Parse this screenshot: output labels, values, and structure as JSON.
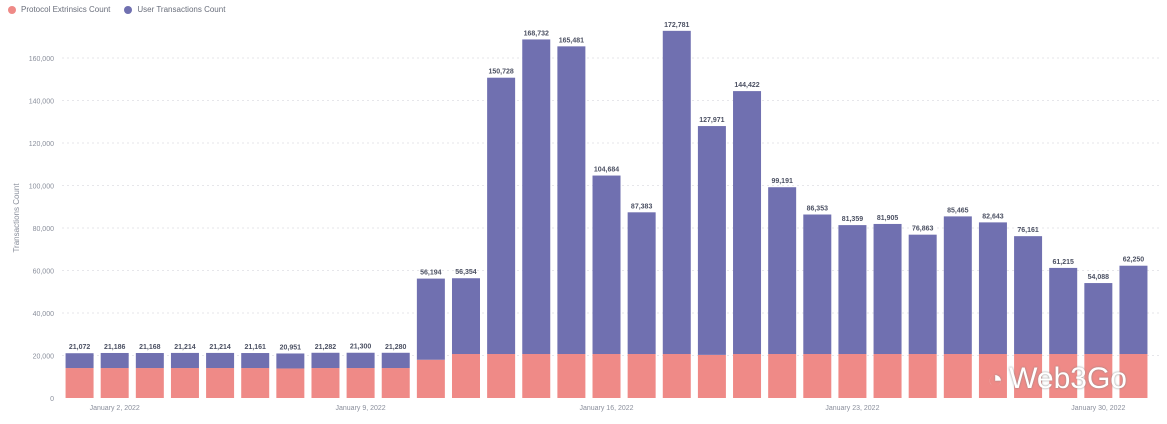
{
  "chart_data": {
    "type": "bar",
    "stacked": true,
    "ylabel": "Transactions Count",
    "ylim": [
      0,
      175000
    ],
    "yticks": [
      0,
      20000,
      40000,
      60000,
      80000,
      100000,
      120000,
      140000,
      160000
    ],
    "ytick_labels": [
      "0",
      "20,000",
      "40,000",
      "60,000",
      "80,000",
      "100,000",
      "120,000",
      "140,000",
      "160,000"
    ],
    "x_tick_labels": [
      {
        "index": 1,
        "label": "January 2, 2022"
      },
      {
        "index": 8,
        "label": "January 9, 2022"
      },
      {
        "index": 15,
        "label": "January 16, 2022"
      },
      {
        "index": 22,
        "label": "January 23, 2022"
      },
      {
        "index": 29,
        "label": "January 30, 2022"
      }
    ],
    "categories": [
      "2022-01-01",
      "2022-01-02",
      "2022-01-03",
      "2022-01-04",
      "2022-01-05",
      "2022-01-06",
      "2022-01-07",
      "2022-01-08",
      "2022-01-09",
      "2022-01-10",
      "2022-01-11",
      "2022-01-12",
      "2022-01-13",
      "2022-01-14",
      "2022-01-15",
      "2022-01-16",
      "2022-01-17",
      "2022-01-18",
      "2022-01-19",
      "2022-01-20",
      "2022-01-21",
      "2022-01-22",
      "2022-01-23",
      "2022-01-24",
      "2022-01-25",
      "2022-01-26",
      "2022-01-27",
      "2022-01-28",
      "2022-01-29",
      "2022-01-30",
      "2022-01-31"
    ],
    "grid": true,
    "legend_placement": "top-left",
    "series": [
      {
        "name": "Protocol Extrinsics Count",
        "color": "#ef8a87",
        "values": [
          14100,
          14100,
          14100,
          14100,
          14100,
          14100,
          13900,
          14100,
          14100,
          14100,
          18000,
          20700,
          20700,
          20700,
          20700,
          20700,
          20700,
          20700,
          20300,
          20700,
          20700,
          20700,
          20700,
          20700,
          20700,
          20700,
          20700,
          20700,
          20700,
          20700,
          20700
        ]
      },
      {
        "name": "User Transactions Count",
        "color": "#7070b0",
        "values": [
          6972,
          7086,
          7068,
          7114,
          7114,
          7061,
          7051,
          7182,
          7200,
          7180,
          38194,
          35654,
          130028,
          148032,
          144781,
          83984,
          66683,
          152081,
          107671,
          123722,
          78491,
          65653,
          60659,
          61205,
          56163,
          64765,
          61943,
          55461,
          40515,
          33388,
          41550
        ]
      }
    ],
    "totals": [
      21072,
      21186,
      21168,
      21214,
      21214,
      21161,
      20951,
      21282,
      21300,
      21280,
      56194,
      56354,
      150728,
      168732,
      165481,
      104684,
      87383,
      172781,
      127971,
      144422,
      99191,
      86353,
      81359,
      81905,
      76863,
      85465,
      82643,
      76161,
      61215,
      54088,
      62250
    ],
    "total_labels": [
      "21,072",
      "21,186",
      "21,168",
      "21,214",
      "21,214",
      "21,161",
      "20,951",
      "21,282",
      "21,300",
      "21,280",
      "56,194",
      "56,354",
      "150,728",
      "168,732",
      "165,481",
      "104,684",
      "87,383",
      "172,781",
      "127,971",
      "144,422",
      "99,191",
      "86,353",
      "81,359",
      "81,905",
      "76,863",
      "85,465",
      "82,643",
      "76,161",
      "61,215",
      "54,088",
      "62,250"
    ]
  },
  "watermark": "Web3Go"
}
